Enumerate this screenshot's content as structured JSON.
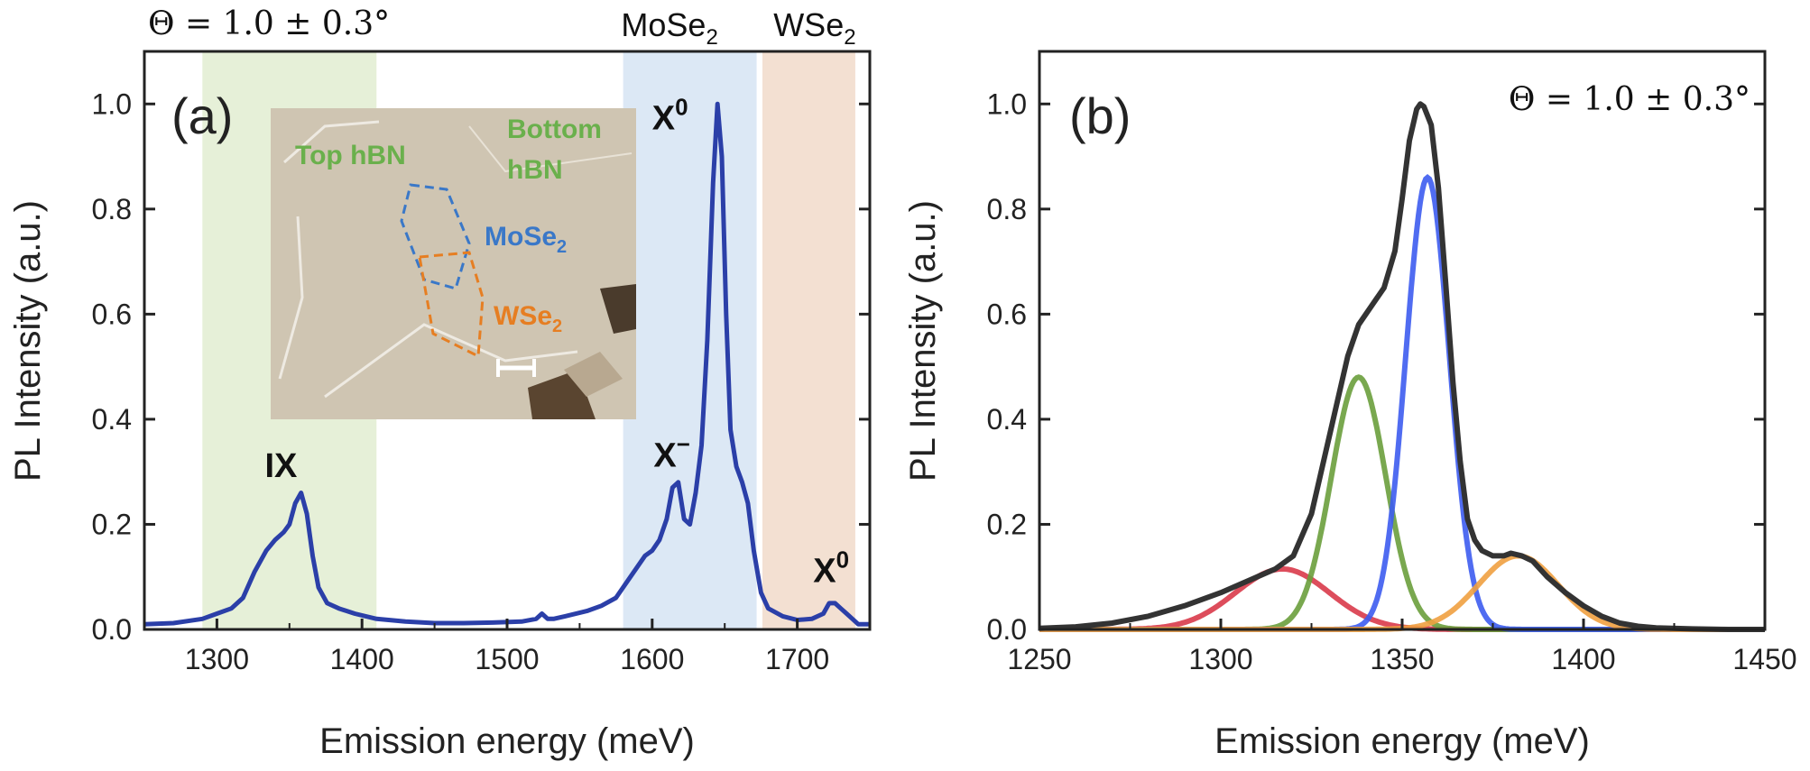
{
  "chart_data": [
    {
      "panel": "(a)",
      "type": "line",
      "theta_label": "Θ = 1.0 ± 0.3°",
      "xlabel": "Emission energy (meV)",
      "ylabel": "PL Intensity (a.u.)",
      "xlim": [
        1250,
        1750
      ],
      "ylim": [
        0,
        1.1
      ],
      "xticks": [
        1300,
        1400,
        1500,
        1600,
        1700
      ],
      "yticks": [
        0.0,
        0.2,
        0.4,
        0.6,
        0.8,
        1.0
      ],
      "bands": [
        {
          "name": "IX region",
          "x0": 1290,
          "x1": 1410,
          "color": "#e6f0d8"
        },
        {
          "name": "MoSe2 region",
          "x0": 1580,
          "x1": 1672,
          "color": "#dce8f5"
        },
        {
          "name": "WSe2 region",
          "x0": 1676,
          "x1": 1740,
          "color": "#f3e0d2"
        }
      ],
      "top_labels": [
        {
          "label": "MoSe",
          "sub": "2",
          "x": 1612
        },
        {
          "label": "WSe",
          "sub": "2",
          "x": 1712
        }
      ],
      "peak_labels": [
        {
          "label": "IX",
          "sup": "",
          "x": 1333,
          "y": 0.29
        },
        {
          "label": "X",
          "sup": "−",
          "x": 1601,
          "y": 0.31
        },
        {
          "label": "X",
          "sup": "0",
          "x": 1600,
          "y": 1.0
        },
        {
          "label": "X",
          "sup": "0",
          "x": 1711,
          "y": 0.09
        }
      ],
      "series": [
        {
          "name": "PL spectrum",
          "color": "#2b3fa8",
          "x": [
            1250,
            1270,
            1290,
            1300,
            1310,
            1318,
            1326,
            1334,
            1340,
            1346,
            1350,
            1354,
            1358,
            1362,
            1366,
            1370,
            1376,
            1384,
            1395,
            1410,
            1430,
            1450,
            1470,
            1490,
            1510,
            1520,
            1524,
            1528,
            1532,
            1540,
            1555,
            1565,
            1575,
            1585,
            1595,
            1600,
            1605,
            1610,
            1614,
            1618,
            1622,
            1626,
            1630,
            1634,
            1638,
            1642,
            1645,
            1648,
            1651,
            1654,
            1658,
            1662,
            1666,
            1670,
            1675,
            1680,
            1690,
            1700,
            1710,
            1718,
            1722,
            1726,
            1730,
            1734,
            1738,
            1742,
            1750
          ],
          "values": [
            0.01,
            0.012,
            0.02,
            0.03,
            0.04,
            0.06,
            0.11,
            0.15,
            0.17,
            0.185,
            0.2,
            0.24,
            0.26,
            0.22,
            0.14,
            0.08,
            0.05,
            0.04,
            0.03,
            0.02,
            0.015,
            0.012,
            0.012,
            0.013,
            0.015,
            0.02,
            0.03,
            0.02,
            0.02,
            0.025,
            0.035,
            0.045,
            0.06,
            0.1,
            0.14,
            0.15,
            0.17,
            0.21,
            0.27,
            0.28,
            0.21,
            0.2,
            0.26,
            0.35,
            0.55,
            0.85,
            1.0,
            0.9,
            0.6,
            0.38,
            0.31,
            0.28,
            0.24,
            0.15,
            0.07,
            0.04,
            0.025,
            0.018,
            0.02,
            0.03,
            0.05,
            0.05,
            0.04,
            0.03,
            0.02,
            0.01,
            0.01
          ]
        }
      ],
      "inset": {
        "labels": {
          "top_hbn": "Top hBN",
          "bottom_hbn_1": "Bottom",
          "bottom_hbn_2": "hBN",
          "mose2": "MoSe",
          "mose2_sub": "2",
          "wse2": "WSe",
          "wse2_sub": "2"
        },
        "colors": {
          "top_hbn": "#6ab04c",
          "mose2": "#3a78c8",
          "wse2": "#e67e22",
          "background": "#cfc5b2"
        }
      }
    },
    {
      "panel": "(b)",
      "type": "line",
      "theta_label": "Θ = 1.0 ± 0.3°",
      "xlabel": "Emission energy (meV)",
      "ylabel": "PL Intensity (a.u.)",
      "xlim": [
        1250,
        1450
      ],
      "ylim": [
        0,
        1.1
      ],
      "xticks": [
        1250,
        1300,
        1350,
        1400,
        1450
      ],
      "yticks": [
        0.0,
        0.2,
        0.4,
        0.6,
        0.8,
        1.0
      ],
      "series": [
        {
          "name": "data",
          "color": "#333333",
          "x": [
            1250,
            1260,
            1270,
            1280,
            1290,
            1300,
            1305,
            1310,
            1315,
            1320,
            1325,
            1330,
            1335,
            1338,
            1342,
            1345,
            1348,
            1350,
            1352,
            1354,
            1355,
            1356,
            1358,
            1360,
            1362,
            1364,
            1366,
            1368,
            1370,
            1372,
            1375,
            1378,
            1380,
            1383,
            1386,
            1390,
            1395,
            1400,
            1405,
            1410,
            1415,
            1420,
            1430,
            1440,
            1450
          ],
          "values": [
            0.002,
            0.005,
            0.012,
            0.025,
            0.045,
            0.07,
            0.085,
            0.1,
            0.115,
            0.14,
            0.22,
            0.37,
            0.52,
            0.58,
            0.62,
            0.65,
            0.72,
            0.82,
            0.93,
            0.99,
            1.0,
            0.995,
            0.96,
            0.84,
            0.66,
            0.47,
            0.32,
            0.21,
            0.17,
            0.15,
            0.14,
            0.14,
            0.145,
            0.14,
            0.13,
            0.1,
            0.07,
            0.045,
            0.025,
            0.012,
            0.006,
            0.003,
            0.001,
            0.0,
            0.0
          ]
        },
        {
          "name": "peak 1",
          "color": "#d93a4a",
          "gauss": {
            "amp": 0.115,
            "center": 1317,
            "sigma": 13
          }
        },
        {
          "name": "peak 2",
          "color": "#6a9e3c",
          "gauss": {
            "amp": 0.48,
            "center": 1338,
            "sigma": 7.5
          }
        },
        {
          "name": "peak 3",
          "color": "#3d5cf0",
          "gauss": {
            "amp": 0.86,
            "center": 1357,
            "sigma": 6
          }
        },
        {
          "name": "peak 4",
          "color": "#f0a040",
          "gauss": {
            "amp": 0.14,
            "center": 1382,
            "sigma": 11
          }
        }
      ]
    }
  ]
}
